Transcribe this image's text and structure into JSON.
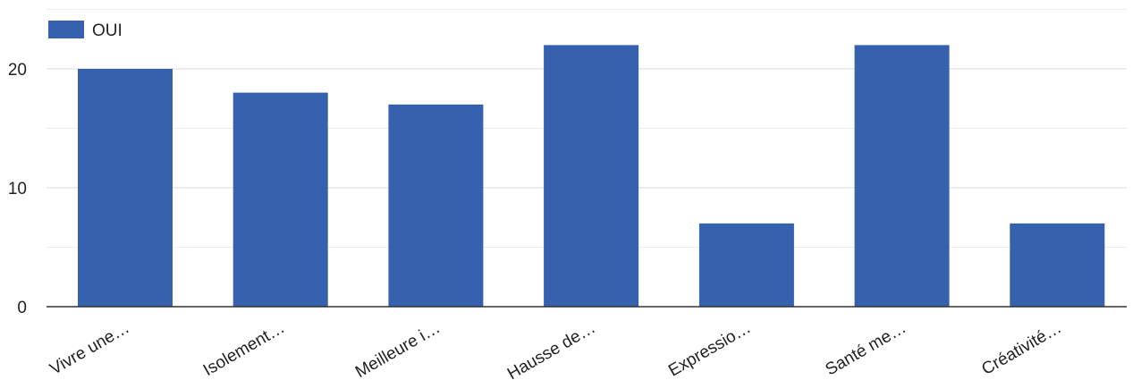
{
  "chart_data": {
    "type": "bar",
    "categories": [
      "Vivre une…",
      "Isolement…",
      "Meilleure i…",
      "Hausse de…",
      "Expressio…",
      "Santé me…",
      "Créativité…"
    ],
    "series": [
      {
        "name": "OUI",
        "values": [
          20,
          18,
          17,
          22,
          7,
          22,
          7
        ]
      }
    ],
    "y_ticks": [
      "0",
      "10",
      "20"
    ],
    "ylim": [
      0,
      25
    ],
    "grid": true,
    "legend": "top-left",
    "colors": {
      "bar": "#3561ae"
    }
  }
}
